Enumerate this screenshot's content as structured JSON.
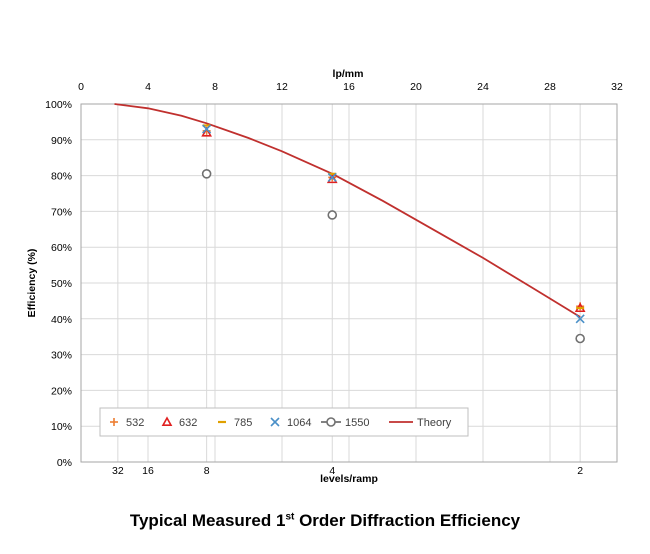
{
  "chart_data": {
    "type": "scatter",
    "title": "",
    "top_axis": {
      "label": "lp/mm",
      "range": [
        0,
        32
      ],
      "ticks": [
        0,
        4,
        8,
        12,
        16,
        20,
        24,
        28,
        32
      ]
    },
    "bottom_axis": {
      "label": "levels/ramp",
      "tick_labels": [
        {
          "label": "32",
          "lp_mm": 2.2
        },
        {
          "label": "16",
          "lp_mm": 4.0
        },
        {
          "label": "8",
          "lp_mm": 7.5
        },
        {
          "label": "4",
          "lp_mm": 15.0
        },
        {
          "label": "2",
          "lp_mm": 29.8
        }
      ]
    },
    "y_axis": {
      "label": "Efficiency (%)",
      "range": [
        0,
        100
      ],
      "ticks": [
        "0%",
        "10%",
        "20%",
        "30%",
        "40%",
        "50%",
        "60%",
        "70%",
        "80%",
        "90%",
        "100%"
      ]
    },
    "grid": true,
    "legend_position": "bottom-left",
    "series": [
      {
        "name": "532",
        "marker": "plus",
        "color": "#ed7d31",
        "x": [
          7.5,
          15.0,
          29.8
        ],
        "y": [
          92.5,
          79.5,
          43.5
        ]
      },
      {
        "name": "632",
        "marker": "triangle",
        "color": "#e02020",
        "x": [
          7.5,
          15.0,
          29.8
        ],
        "y": [
          92.0,
          79.0,
          43.0
        ]
      },
      {
        "name": "785",
        "marker": "dash",
        "color": "#e0a000",
        "x": [
          7.5,
          15.0,
          29.8
        ],
        "y": [
          94.0,
          80.5,
          43.0
        ]
      },
      {
        "name": "1064",
        "marker": "x",
        "color": "#4a90c8",
        "x": [
          7.5,
          15.0,
          29.8
        ],
        "y": [
          93.0,
          79.5,
          40.0
        ]
      },
      {
        "name": "1550",
        "marker": "circle",
        "color": "#707070",
        "x": [
          7.5,
          15.0,
          29.8
        ],
        "y": [
          80.5,
          69.0,
          34.5
        ]
      },
      {
        "name": "Theory",
        "marker": "line",
        "color": "#c0302e",
        "x": [
          2.0,
          4.0,
          6.0,
          7.5,
          10.0,
          12.0,
          15.0,
          18.0,
          21.0,
          24.0,
          27.0,
          29.8
        ],
        "y": [
          100.0,
          98.8,
          96.7,
          94.6,
          90.5,
          86.8,
          80.5,
          73.0,
          65.0,
          57.0,
          48.5,
          40.5
        ]
      }
    ]
  },
  "caption": {
    "prefix": "Typical Measured 1",
    "superscript": "st",
    "suffix": " Order Diffraction Efficiency"
  }
}
